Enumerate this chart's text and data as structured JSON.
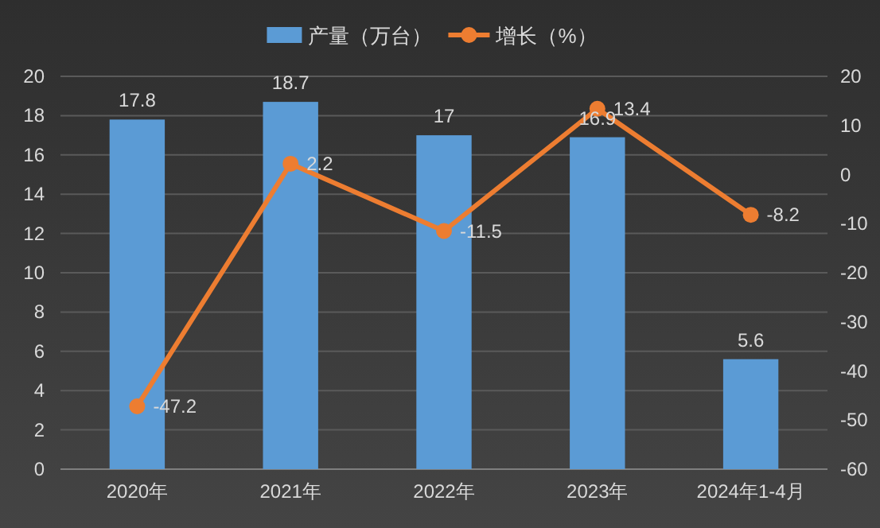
{
  "chart_data": {
    "type": "bar",
    "categories": [
      "2020年",
      "2021年",
      "2022年",
      "2023年",
      "2024年1-4月"
    ],
    "series": [
      {
        "name": "产量（万台）",
        "color": "#5b9bd5",
        "values": [
          17.8,
          18.7,
          17,
          16.9,
          5.6
        ]
      },
      {
        "name": "增长（%）",
        "type": "line",
        "axis": "y2",
        "color": "#ed7d31",
        "values": [
          -47.2,
          2.2,
          -11.5,
          13.4,
          -8.2
        ]
      }
    ],
    "ylim": [
      0,
      20
    ],
    "yticks": [
      0,
      2,
      4,
      6,
      8,
      10,
      12,
      14,
      16,
      18,
      20
    ],
    "y2lim": [
      -60,
      20
    ],
    "y2ticks": [
      -60,
      -50,
      -40,
      -30,
      -20,
      -10,
      0,
      10,
      20
    ],
    "grid": "y",
    "legend": "top",
    "marker": "circle",
    "data_labels": true
  }
}
